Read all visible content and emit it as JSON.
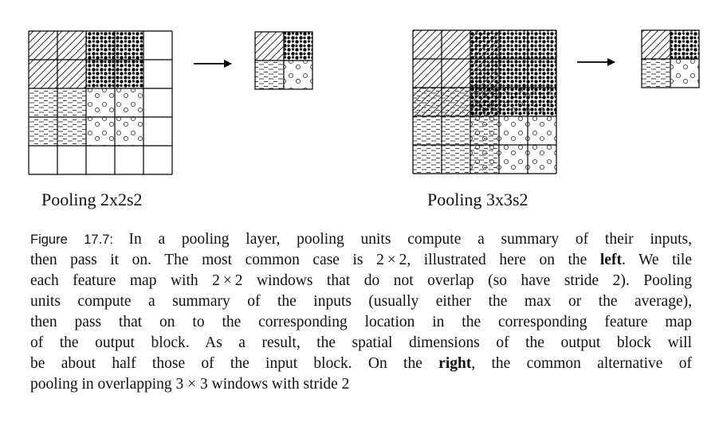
{
  "diagrams": {
    "left": {
      "label": "Pooling 2x2s2"
    },
    "right": {
      "label": "Pooling 3x3s2"
    }
  },
  "caption": {
    "figure_label": "Figure 17.7:",
    "lines": [
      [
        {
          "t": "In a pooling layer, pooling units compute a summary of their inputs,"
        }
      ],
      [
        {
          "t": "then pass it on. The most common case is 2 × 2, illustrated here on the "
        },
        {
          "t": "left",
          "b": true
        },
        {
          "t": ". We tile"
        }
      ],
      [
        {
          "t": "each feature map with 2 × 2 windows that do not overlap (so have stride 2). Pooling"
        }
      ],
      [
        {
          "t": "units compute a summary of the inputs (usually either the max or the average),"
        }
      ],
      [
        {
          "t": "then pass that on to the corresponding location in the corresponding feature map"
        }
      ],
      [
        {
          "t": "of the output block. As a result, the spatial dimensions of the output block will"
        }
      ],
      [
        {
          "t": "be about half those of the input block. On the "
        },
        {
          "t": "right",
          "b": true
        },
        {
          "t": ", the common alternative of"
        }
      ],
      [
        {
          "t": "pooling in overlapping 3 × 3 windows with stride 2"
        }
      ]
    ]
  }
}
